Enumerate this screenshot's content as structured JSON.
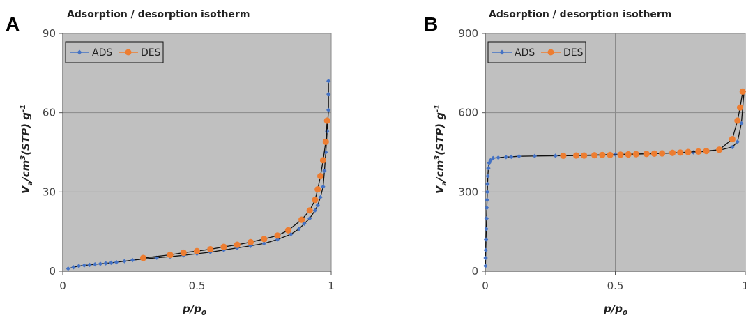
{
  "chart_data": [
    {
      "panel": "A",
      "type": "scatter",
      "title": "Adsorption / desorption isotherm",
      "xlabel": "p/p0",
      "ylabel": "Va/cm3(STP) g-1",
      "xlim": [
        0,
        1
      ],
      "ylim": [
        0,
        90
      ],
      "xticks": [
        0,
        0.5,
        1
      ],
      "xtick_labels": [
        "0",
        "0.5",
        "1"
      ],
      "yticks": [
        0,
        30,
        60,
        90
      ],
      "ytick_labels": [
        "0",
        "30",
        "60",
        "90"
      ],
      "grid": true,
      "legend_position": "top-left",
      "series": [
        {
          "name": "ADS",
          "color": "#4472c4",
          "marker": "diamond",
          "x": [
            0.02,
            0.04,
            0.06,
            0.08,
            0.1,
            0.12,
            0.14,
            0.16,
            0.18,
            0.2,
            0.23,
            0.26,
            0.3,
            0.35,
            0.4,
            0.45,
            0.5,
            0.55,
            0.6,
            0.65,
            0.7,
            0.75,
            0.8,
            0.85,
            0.88,
            0.9,
            0.92,
            0.94,
            0.95,
            0.96,
            0.97,
            0.975,
            0.98,
            0.985,
            0.99,
            0.99,
            0.99
          ],
          "y": [
            1.0,
            1.5,
            2.0,
            2.2,
            2.4,
            2.6,
            2.8,
            3.0,
            3.2,
            3.4,
            3.8,
            4.2,
            4.6,
            5.1,
            5.5,
            6.0,
            6.6,
            7.2,
            8.0,
            8.8,
            9.6,
            10.5,
            12.0,
            14.0,
            16.0,
            18.0,
            20.0,
            23.0,
            25.0,
            28.0,
            32.0,
            38.0,
            45.0,
            53.0,
            61.0,
            67.0,
            72.0
          ]
        },
        {
          "name": "DES",
          "color": "#ed7d31",
          "marker": "circle",
          "x": [
            0.3,
            0.4,
            0.45,
            0.5,
            0.55,
            0.6,
            0.65,
            0.7,
            0.75,
            0.8,
            0.84,
            0.89,
            0.92,
            0.94,
            0.95,
            0.96,
            0.97,
            0.98,
            0.985
          ],
          "y": [
            5.0,
            6.2,
            7.0,
            7.6,
            8.3,
            9.2,
            10.0,
            11.0,
            12.2,
            13.5,
            15.5,
            19.5,
            23.0,
            27.0,
            31.0,
            36.0,
            42.0,
            49.0,
            57.0
          ]
        }
      ]
    },
    {
      "panel": "B",
      "type": "scatter",
      "title": "Adsorption / desorption isotherm",
      "xlabel": "p/p0",
      "ylabel": "Va/cm3(STP) g-1",
      "xlim": [
        0,
        1
      ],
      "ylim": [
        0,
        900
      ],
      "xticks": [
        0,
        0.5,
        1
      ],
      "xtick_labels": [
        "0",
        "0.5",
        "1"
      ],
      "yticks": [
        0,
        300,
        600,
        900
      ],
      "ytick_labels": [
        "0",
        "300",
        "600",
        "900"
      ],
      "grid": true,
      "legend_position": "top-left",
      "series": [
        {
          "name": "ADS",
          "color": "#4472c4",
          "marker": "diamond",
          "x": [
            0.001,
            0.0015,
            0.002,
            0.003,
            0.004,
            0.005,
            0.006,
            0.007,
            0.008,
            0.009,
            0.01,
            0.012,
            0.015,
            0.02,
            0.03,
            0.05,
            0.08,
            0.1,
            0.13,
            0.19,
            0.27,
            0.35,
            0.5,
            0.65,
            0.8,
            0.9,
            0.95,
            0.97,
            0.985,
            0.995
          ],
          "y": [
            20,
            50,
            80,
            120,
            160,
            200,
            240,
            270,
            300,
            330,
            360,
            390,
            410,
            420,
            428,
            430,
            432,
            433,
            435,
            436,
            437,
            438,
            442,
            445,
            450,
            458,
            470,
            490,
            560,
            680
          ]
        },
        {
          "name": "DES",
          "color": "#ed7d31",
          "marker": "circle",
          "x": [
            0.3,
            0.35,
            0.38,
            0.42,
            0.45,
            0.48,
            0.52,
            0.55,
            0.58,
            0.62,
            0.65,
            0.68,
            0.72,
            0.75,
            0.78,
            0.82,
            0.85,
            0.9,
            0.95,
            0.97,
            0.98,
            0.99
          ],
          "y": [
            437,
            438,
            438,
            439,
            440,
            440,
            441,
            442,
            443,
            444,
            445,
            446,
            448,
            449,
            451,
            453,
            455,
            460,
            500,
            570,
            620,
            680
          ]
        }
      ]
    }
  ]
}
